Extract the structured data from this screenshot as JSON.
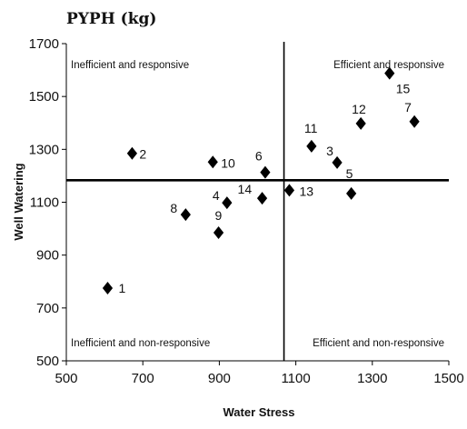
{
  "chart_data": {
    "type": "scatter",
    "title": "PYPH (kg)",
    "xlabel": "Water Stress",
    "ylabel": "Well Watering",
    "xlim": [
      500,
      1500
    ],
    "ylim": [
      500,
      1700
    ],
    "xticks": [
      "500",
      "700",
      "900",
      "1100",
      "1300",
      "1500"
    ],
    "yticks": [
      "500",
      "700",
      "900",
      "1100",
      "1300",
      "1500",
      "1700"
    ],
    "grid": false,
    "reference_lines": {
      "x_mean": 1069,
      "y_mean": 1183
    },
    "quadrants": {
      "top_left": "Inefficient and responsive",
      "top_right": "Efficient and responsive",
      "bottom_left": "Inefficient and non-responsive",
      "bottom_right": "Efficient and non-responsive"
    },
    "points": [
      {
        "label": "1",
        "x": 608,
        "y": 775
      },
      {
        "label": "2",
        "x": 672,
        "y": 1285
      },
      {
        "label": "3",
        "x": 1208,
        "y": 1250
      },
      {
        "label": "4",
        "x": 920,
        "y": 1098
      },
      {
        "label": "5",
        "x": 1245,
        "y": 1133
      },
      {
        "label": "6",
        "x": 1020,
        "y": 1213
      },
      {
        "label": "7",
        "x": 1410,
        "y": 1405
      },
      {
        "label": "8",
        "x": 812,
        "y": 1053
      },
      {
        "label": "9",
        "x": 898,
        "y": 985
      },
      {
        "label": "10",
        "x": 883,
        "y": 1252
      },
      {
        "label": "11",
        "x": 1141,
        "y": 1312
      },
      {
        "label": "12",
        "x": 1270,
        "y": 1398
      },
      {
        "label": "13",
        "x": 1083,
        "y": 1145
      },
      {
        "label": "14",
        "x": 1012,
        "y": 1115
      },
      {
        "label": "15",
        "x": 1345,
        "y": 1588
      }
    ]
  }
}
